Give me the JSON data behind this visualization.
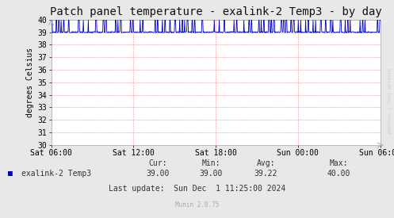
{
  "title": "Patch panel temperature - exalink-2 Temp3 - by day",
  "ylabel": "degrees Celsius",
  "background_color": "#e8e8e8",
  "plot_bg_color": "#ffffff",
  "line_color": "#0000bb",
  "ylim": [
    30,
    40
  ],
  "yticks": [
    30,
    31,
    32,
    33,
    34,
    35,
    36,
    37,
    38,
    39,
    40
  ],
  "xtick_labels": [
    "Sat 06:00",
    "Sat 12:00",
    "Sat 18:00",
    "Sun 00:00",
    "Sun 06:00"
  ],
  "legend_label": "exalink-2 Temp3",
  "cur": "39.00",
  "min_val": "39.00",
  "avg": "39.22",
  "max_val": "40.00",
  "last_update": "Last update:  Sun Dec  1 11:25:00 2024",
  "munin_version": "Munin 2.0.75",
  "watermark": "RRDTOOL / TOBI OETIKER",
  "title_fontsize": 10,
  "axis_fontsize": 7,
  "label_fontsize": 7
}
